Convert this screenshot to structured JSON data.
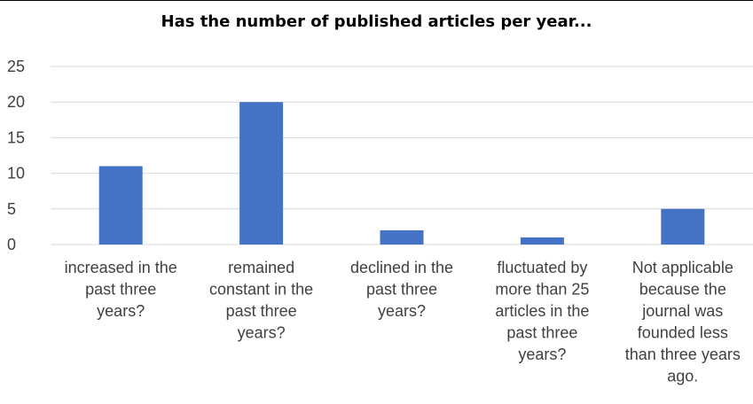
{
  "chart_data": {
    "type": "bar",
    "title": "Has the number of published articles per year...",
    "categories": [
      [
        "increased in the",
        "past three",
        "years?"
      ],
      [
        "remained",
        "constant in the",
        "past three",
        "years?"
      ],
      [
        "declined in the",
        "past three",
        "years?"
      ],
      [
        "fluctuated by",
        "more than 25",
        "articles in the",
        "past three",
        "years?"
      ],
      [
        "Not applicable",
        "because the",
        "journal was",
        "founded less",
        "than three years",
        "ago."
      ]
    ],
    "values": [
      11,
      20,
      2,
      1,
      5
    ],
    "ylim": [
      0,
      25
    ],
    "yticks": [
      0,
      5,
      10,
      15,
      20,
      25
    ],
    "grid": true,
    "bar_color": "#4472C4",
    "grid_color": "#D9D9D9"
  }
}
